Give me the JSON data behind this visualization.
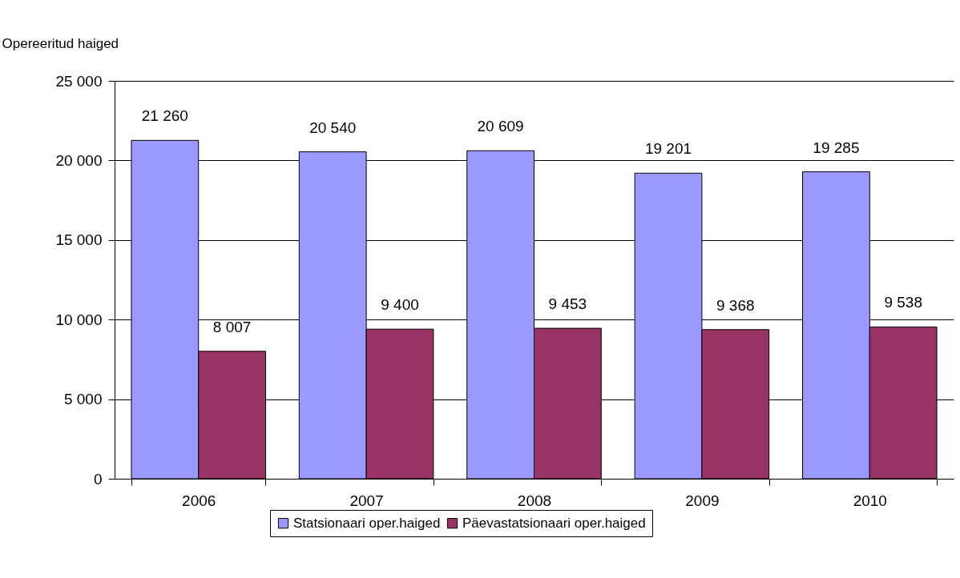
{
  "chart_data": {
    "type": "bar",
    "ylabel": "Opereeritud haiged",
    "categories": [
      "2006",
      "2007",
      "2008",
      "2009",
      "2010"
    ],
    "series": [
      {
        "name": "Statsionaari oper.haiged",
        "color": "#9999ff",
        "values": [
          21260,
          20540,
          20609,
          19201,
          19285
        ],
        "value_labels": [
          "21 260",
          "20 540",
          "20 609",
          "19 201",
          "19 285"
        ]
      },
      {
        "name": "Päevastatsionaari oper.haiged",
        "color": "#993366",
        "values": [
          8007,
          9400,
          9453,
          9368,
          9538
        ],
        "value_labels": [
          "8 007",
          "9 400",
          "9 453",
          "9 368",
          "9 538"
        ]
      }
    ],
    "ylim": [
      0,
      25000
    ],
    "yticks": [
      {
        "value": 0,
        "label": "0"
      },
      {
        "value": 5000,
        "label": "5 000"
      },
      {
        "value": 10000,
        "label": "10 000"
      },
      {
        "value": 15000,
        "label": "15 000"
      },
      {
        "value": 20000,
        "label": "20 000"
      },
      {
        "value": 25000,
        "label": "25 000"
      }
    ],
    "grid": "y",
    "legend": "bottom"
  }
}
